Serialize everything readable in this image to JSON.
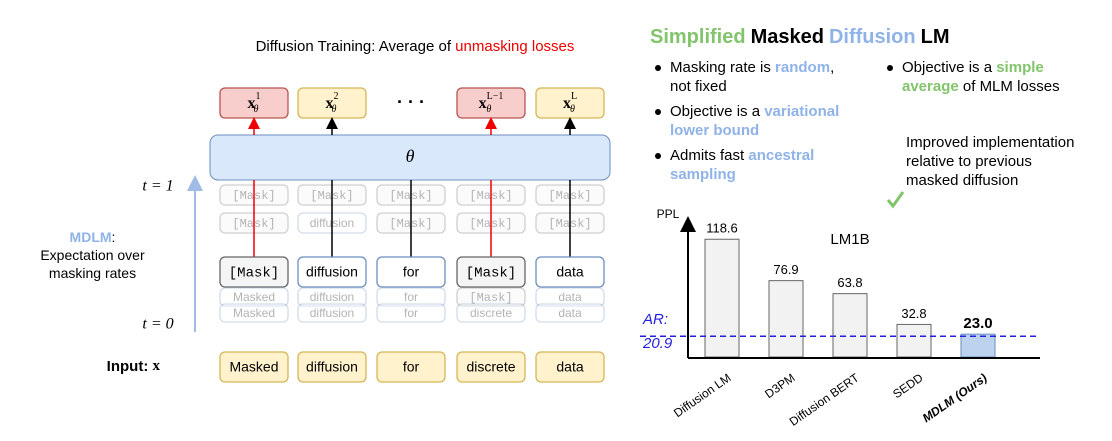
{
  "diagram": {
    "title": {
      "text": "Diffusion Training: Average of ",
      "highlight": "unmasking losses"
    },
    "outputs": [
      {
        "base": "x",
        "sup": "1",
        "sub": "θ",
        "color": "#f8cecc"
      },
      {
        "base": "x",
        "sup": "2",
        "sub": "θ",
        "color": "#fff2cc"
      },
      {
        "base": "x",
        "sup": "L−1",
        "sub": "θ",
        "color": "#f8cecc"
      },
      {
        "base": "x",
        "sup": "L",
        "sub": "θ",
        "color": "#fff2cc"
      }
    ],
    "ellipsis": "· · ·",
    "model": "θ",
    "t_top": "t = 1",
    "t_bottom": "t = 0",
    "mdlm": {
      "name": "MDLM",
      "colon": ":",
      "text": "Expectation over masking rates"
    },
    "rows": [
      {
        "tokens": [
          "[Mask]",
          "[Mask]",
          "[Mask]",
          "[Mask]",
          "[Mask]"
        ],
        "masked": [
          true,
          true,
          true,
          true,
          true
        ],
        "faded": true
      },
      {
        "tokens": [
          "[Mask]",
          "diffusion",
          "[Mask]",
          "[Mask]",
          "[Mask]"
        ],
        "masked": [
          true,
          false,
          true,
          true,
          true
        ],
        "faded": true
      },
      {
        "tokens": [
          "[Mask]",
          "diffusion",
          "for",
          "[Mask]",
          "data"
        ],
        "masked": [
          true,
          false,
          false,
          true,
          false
        ],
        "faded": false
      },
      {
        "tokens": [
          "Masked",
          "diffusion",
          "for",
          "[Mask]",
          "data"
        ],
        "masked": [
          false,
          false,
          false,
          true,
          false
        ],
        "faded": true
      },
      {
        "tokens": [
          "Masked",
          "diffusion",
          "for",
          "discrete",
          "data"
        ],
        "masked": [
          false,
          false,
          false,
          false,
          false
        ],
        "faded": true
      }
    ],
    "input_label": {
      "text": "Input: ",
      "var": "x"
    },
    "input": [
      "Masked",
      "diffusion",
      "for",
      "discrete",
      "data"
    ]
  },
  "panel": {
    "heading": [
      {
        "text": "Simplified",
        "color": "#82c46c"
      },
      {
        "text": "Masked",
        "color": "#000000"
      },
      {
        "text": "Diffusion",
        "color": "#8fb3e8"
      },
      {
        "text": "LM",
        "color": "#000000"
      }
    ],
    "bullets_left": [
      [
        {
          "text": "Masking rate is ",
          "color": "#000000"
        },
        {
          "text": "random",
          "color": "#8fb3e8"
        },
        {
          "text": ", not fixed",
          "color": "#000000"
        }
      ],
      [
        {
          "text": "Objective is a ",
          "color": "#000000"
        },
        {
          "text": "variational lower bound",
          "color": "#8fb3e8"
        }
      ],
      [
        {
          "text": "Admits fast ",
          "color": "#000000"
        },
        {
          "text": "ancestral sampling",
          "color": "#8fb3e8"
        }
      ]
    ],
    "bullets_right": [
      [
        {
          "text": "Objective is a ",
          "color": "#000000"
        },
        {
          "text": "simple average",
          "color": "#82c46c"
        },
        {
          "text": " of MLM losses",
          "color": "#000000"
        }
      ]
    ],
    "check_item": "Improved implementation relative to previous masked diffusion"
  },
  "chart_data": {
    "type": "bar",
    "title": "LM1B",
    "y_label": "PPL",
    "categories": [
      "Diffusion LM",
      "D3PM",
      "Diffusion BERT",
      "SEDD",
      "MDLM (Ours)"
    ],
    "values": [
      118.6,
      76.9,
      63.8,
      32.8,
      23.0
    ],
    "value_labels": [
      "118.6",
      "76.9",
      "63.8",
      "32.8",
      "23.0"
    ],
    "color": "#f2f2f2",
    "colors": [
      "#f2f2f2",
      "#f2f2f2",
      "#f2f2f2",
      "#f2f2f2",
      "#bcd3ef"
    ],
    "ylim": [
      0,
      140
    ],
    "baseline": {
      "label": "AR:",
      "value": 20.9,
      "color": "#1f1fdc"
    }
  }
}
